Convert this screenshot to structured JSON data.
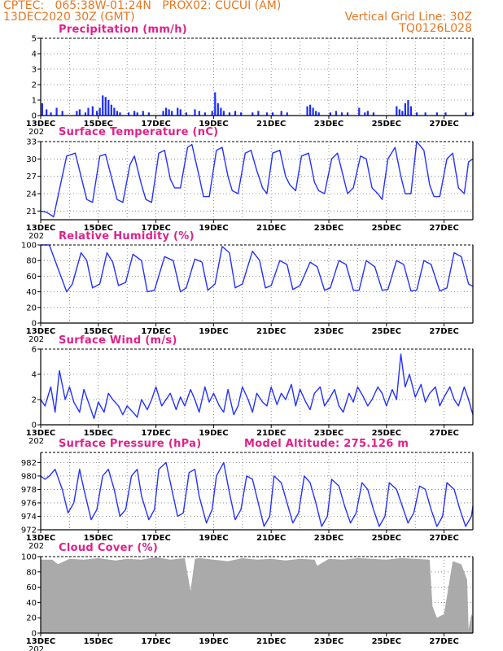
{
  "header": {
    "line1_left": "CPTEC:   065:38W-01:24N   PROX02: CUCUI (AM)",
    "line2_left": "13DEC2020 30Z (GMT)",
    "line2_right": "Vertical Grid Line: 30Z",
    "line3_right": "TQ0126L028"
  },
  "colors": {
    "header": "#e87722",
    "title": "#e0208a",
    "line": "#2432ff",
    "bar": "#1a2bff",
    "cloud": "#aaaaaa"
  },
  "x_labels": [
    "13DEC",
    "15DEC",
    "17DEC",
    "19DEC",
    "21DEC",
    "23DEC",
    "25DEC",
    "27DEC"
  ],
  "year_fragment": "202",
  "chart_data": [
    {
      "id": "precip",
      "type": "bar",
      "title": "Precipitation (mm/h)",
      "ylim": [
        0,
        5
      ],
      "yticks": [
        "0",
        "1",
        "2",
        "3",
        "4",
        "5"
      ],
      "x_range_days": [
        13,
        28
      ],
      "x_days": [
        13.05,
        13.2,
        13.35,
        13.55,
        13.75,
        14.25,
        14.35,
        14.55,
        14.65,
        14.8,
        14.95,
        15.05,
        15.15,
        15.25,
        15.35,
        15.45,
        15.55,
        15.65,
        15.75,
        16.05,
        16.25,
        16.35,
        16.55,
        16.75,
        17.25,
        17.35,
        17.45,
        17.55,
        17.75,
        17.85,
        18.05,
        18.35,
        18.5,
        18.7,
        18.95,
        19.05,
        19.15,
        19.25,
        19.35,
        19.55,
        19.75,
        19.95,
        20.35,
        20.55,
        20.85,
        21.05,
        21.35,
        21.55,
        22.25,
        22.35,
        22.45,
        22.55,
        22.65,
        23.05,
        23.25,
        23.45,
        23.65,
        24.05,
        24.25,
        24.35,
        24.55,
        25.35,
        25.45,
        25.55,
        25.65,
        25.75,
        25.85,
        26.05,
        26.35,
        26.75,
        27.05,
        27.75,
        28.0
      ],
      "values": [
        0.8,
        0.4,
        0.2,
        0.5,
        0.3,
        0.3,
        0.4,
        0.2,
        0.5,
        0.6,
        0.3,
        0.5,
        1.3,
        1.2,
        1.0,
        0.7,
        0.5,
        0.3,
        0.2,
        0.2,
        0.3,
        0.2,
        0.3,
        0.2,
        0.3,
        0.5,
        0.4,
        0.3,
        0.5,
        0.4,
        0.2,
        0.4,
        0.3,
        0.2,
        0.3,
        1.5,
        0.8,
        0.5,
        0.3,
        0.2,
        0.3,
        0.2,
        0.2,
        0.3,
        0.2,
        0.2,
        0.3,
        0.2,
        0.6,
        0.7,
        0.5,
        0.3,
        0.2,
        0.2,
        0.3,
        0.2,
        0.2,
        0.5,
        0.2,
        0.3,
        0.2,
        0.6,
        0.4,
        0.3,
        0.8,
        1.0,
        0.6,
        0.2,
        0.2,
        0.2,
        0.2,
        0.2,
        0.2
      ]
    },
    {
      "id": "temp",
      "type": "line",
      "title": "Surface Temperature (nC)",
      "ylim": [
        19.5,
        33
      ],
      "yticks": [
        "21",
        "24",
        "27",
        "30",
        "33"
      ],
      "x_range_days": [
        13,
        28
      ],
      "x_days": [
        13.0,
        13.2,
        13.45,
        13.75,
        13.9,
        14.2,
        14.45,
        14.6,
        14.8,
        15.05,
        15.25,
        15.5,
        15.65,
        15.85,
        16.1,
        16.25,
        16.5,
        16.65,
        16.85,
        17.1,
        17.3,
        17.5,
        17.65,
        17.85,
        18.1,
        18.25,
        18.5,
        18.65,
        18.85,
        19.1,
        19.3,
        19.5,
        19.65,
        19.85,
        20.1,
        20.3,
        20.5,
        20.7,
        20.85,
        21.05,
        21.3,
        21.5,
        21.65,
        21.85,
        22.05,
        22.3,
        22.5,
        22.65,
        22.85,
        23.1,
        23.3,
        23.5,
        23.65,
        23.85,
        24.1,
        24.3,
        24.5,
        24.7,
        24.85,
        25.05,
        25.3,
        25.5,
        25.65,
        25.85,
        26.05,
        26.3,
        26.5,
        26.65,
        26.85,
        27.1,
        27.3,
        27.5,
        27.7,
        27.85,
        28.0
      ],
      "values": [
        21.0,
        20.8,
        20.0,
        27.0,
        30.5,
        31.0,
        26.0,
        23.0,
        22.5,
        30.5,
        30.8,
        26.0,
        23.0,
        22.5,
        29.0,
        30.5,
        25.5,
        23.0,
        22.5,
        31.0,
        31.5,
        26.5,
        25.0,
        25.0,
        32.0,
        32.5,
        27.0,
        23.5,
        23.5,
        31.5,
        32.0,
        27.0,
        24.5,
        24.0,
        31.0,
        31.5,
        28.0,
        25.0,
        24.0,
        31.0,
        31.5,
        27.0,
        25.5,
        24.5,
        30.5,
        31.0,
        26.0,
        24.5,
        24.0,
        30.0,
        31.0,
        27.0,
        24.0,
        25.0,
        30.5,
        30.0,
        25.0,
        24.0,
        23.0,
        30.0,
        32.0,
        27.0,
        24.0,
        24.0,
        33.0,
        31.5,
        25.5,
        23.5,
        23.5,
        30.0,
        31.0,
        25.0,
        24.0,
        29.5,
        30.0
      ]
    },
    {
      "id": "humidity",
      "type": "line",
      "title": "Relative Humidity (%)",
      "ylim": [
        0,
        100
      ],
      "yticks": [
        "0",
        "20",
        "40",
        "60",
        "80",
        "100"
      ],
      "x_range_days": [
        13,
        28
      ],
      "x_days": [
        13.0,
        13.3,
        13.6,
        13.9,
        14.1,
        14.4,
        14.6,
        14.8,
        15.05,
        15.3,
        15.5,
        15.7,
        15.95,
        16.2,
        16.5,
        16.7,
        16.95,
        17.3,
        17.6,
        17.85,
        18.05,
        18.35,
        18.6,
        18.8,
        19.05,
        19.3,
        19.55,
        19.75,
        20.0,
        20.35,
        20.6,
        20.8,
        21.0,
        21.3,
        21.55,
        21.75,
        22.0,
        22.35,
        22.6,
        22.85,
        23.05,
        23.35,
        23.6,
        23.85,
        24.05,
        24.3,
        24.6,
        24.85,
        25.05,
        25.35,
        25.6,
        25.85,
        26.05,
        26.3,
        26.55,
        26.85,
        27.1,
        27.35,
        27.6,
        27.85,
        28.0
      ],
      "values": [
        100,
        100,
        70,
        40,
        50,
        90,
        80,
        45,
        50,
        90,
        78,
        48,
        52,
        88,
        80,
        40,
        42,
        85,
        80,
        40,
        45,
        82,
        78,
        42,
        50,
        98,
        90,
        45,
        50,
        92,
        80,
        45,
        48,
        80,
        75,
        43,
        48,
        78,
        72,
        42,
        45,
        80,
        75,
        42,
        42,
        80,
        72,
        42,
        43,
        80,
        75,
        41,
        42,
        80,
        75,
        41,
        45,
        90,
        85,
        50,
        47
      ]
    },
    {
      "id": "wind",
      "type": "line",
      "title": "Surface Wind (m/s)",
      "ylim": [
        0,
        6
      ],
      "yticks": [
        "0",
        "2",
        "4",
        "6"
      ],
      "x_range_days": [
        13,
        28
      ],
      "x_days": [
        13.0,
        13.15,
        13.35,
        13.5,
        13.65,
        13.85,
        14.0,
        14.15,
        14.35,
        14.5,
        14.7,
        14.85,
        15.0,
        15.2,
        15.35,
        15.5,
        15.7,
        15.85,
        16.0,
        16.2,
        16.35,
        16.5,
        16.7,
        16.85,
        17.0,
        17.2,
        17.35,
        17.5,
        17.7,
        17.85,
        18.0,
        18.2,
        18.35,
        18.5,
        18.7,
        18.85,
        19.0,
        19.2,
        19.35,
        19.5,
        19.7,
        19.85,
        20.0,
        20.2,
        20.35,
        20.5,
        20.7,
        20.85,
        21.0,
        21.2,
        21.35,
        21.5,
        21.7,
        21.85,
        22.0,
        22.2,
        22.35,
        22.5,
        22.7,
        22.85,
        23.0,
        23.2,
        23.35,
        23.5,
        23.7,
        23.85,
        24.0,
        24.2,
        24.35,
        24.5,
        24.7,
        24.85,
        25.0,
        25.2,
        25.35,
        25.5,
        25.65,
        25.8,
        26.0,
        26.2,
        26.35,
        26.5,
        26.7,
        26.85,
        27.0,
        27.2,
        27.35,
        27.5,
        27.7,
        27.85,
        28.0
      ],
      "values": [
        2.0,
        1.5,
        3.0,
        1.0,
        4.3,
        2.0,
        3.0,
        1.8,
        1.0,
        2.8,
        1.5,
        0.5,
        1.8,
        1.0,
        2.5,
        2.0,
        1.5,
        0.8,
        1.5,
        1.0,
        0.6,
        2.0,
        1.2,
        2.0,
        3.0,
        1.5,
        2.0,
        2.5,
        1.2,
        2.2,
        1.5,
        2.8,
        2.0,
        1.0,
        3.0,
        1.8,
        2.5,
        1.5,
        1.0,
        2.8,
        0.8,
        1.5,
        3.0,
        2.0,
        1.0,
        2.5,
        1.8,
        1.5,
        3.0,
        1.6,
        2.5,
        2.0,
        3.2,
        1.5,
        2.8,
        1.8,
        1.2,
        2.5,
        3.0,
        1.5,
        2.0,
        2.8,
        1.5,
        1.0,
        2.5,
        1.8,
        3.0,
        2.2,
        1.5,
        2.0,
        3.0,
        2.5,
        1.5,
        2.8,
        2.0,
        5.6,
        3.0,
        4.0,
        2.2,
        3.2,
        1.8,
        2.5,
        3.0,
        1.5,
        2.2,
        3.0,
        2.0,
        1.5,
        3.0,
        2.0,
        0.8
      ]
    },
    {
      "id": "pressure",
      "type": "line",
      "title": "Surface Pressure (hPa)",
      "annotation": "Model Altitude: 275.126 m",
      "ylim": [
        972,
        983.5
      ],
      "yticks": [
        "972",
        "974",
        "976",
        "978",
        "980",
        "982"
      ],
      "x_range_days": [
        13,
        28
      ],
      "x_days": [
        13.0,
        13.15,
        13.3,
        13.5,
        13.75,
        13.95,
        14.15,
        14.35,
        14.5,
        14.75,
        14.95,
        15.15,
        15.35,
        15.55,
        15.75,
        15.95,
        16.15,
        16.35,
        16.5,
        16.75,
        16.95,
        17.1,
        17.35,
        17.55,
        17.75,
        17.95,
        18.15,
        18.35,
        18.5,
        18.75,
        18.95,
        19.1,
        19.35,
        19.55,
        19.75,
        19.95,
        20.15,
        20.35,
        20.55,
        20.75,
        20.95,
        21.1,
        21.35,
        21.55,
        21.75,
        21.95,
        22.15,
        22.35,
        22.55,
        22.75,
        22.95,
        23.1,
        23.35,
        23.55,
        23.75,
        23.95,
        24.15,
        24.35,
        24.55,
        24.75,
        24.95,
        25.1,
        25.35,
        25.55,
        25.75,
        25.95,
        26.15,
        26.35,
        26.55,
        26.75,
        26.95,
        27.1,
        27.35,
        27.55,
        27.75,
        27.95,
        28.0
      ],
      "values": [
        980,
        979.5,
        980,
        981,
        978,
        974.5,
        976,
        981,
        978,
        973.5,
        975,
        980,
        981,
        978,
        974,
        975,
        980,
        981,
        977,
        973.5,
        975,
        981,
        982,
        978,
        974,
        974.5,
        980.5,
        981,
        977,
        973,
        975,
        980,
        982,
        977.5,
        973.5,
        975,
        980,
        979.5,
        976,
        972.5,
        974,
        980,
        979,
        976,
        973,
        974.5,
        980,
        979,
        976,
        972.5,
        974,
        979.5,
        978.5,
        975.5,
        973,
        974.5,
        979,
        978,
        975,
        972.5,
        974,
        979,
        978,
        975.5,
        973,
        974.5,
        978.5,
        978,
        975,
        972.5,
        974,
        979,
        978,
        975,
        972.5,
        974,
        975.5
      ]
    },
    {
      "id": "cloud",
      "type": "area",
      "title": "Cloud Cover (%)",
      "ylim": [
        0,
        100
      ],
      "yticks": [
        "0",
        "20",
        "40",
        "60",
        "80",
        "100"
      ],
      "x_range_days": [
        13,
        28
      ],
      "x_days": [
        13.0,
        13.4,
        13.6,
        14.0,
        14.5,
        15.0,
        15.6,
        16.0,
        16.5,
        17.0,
        17.5,
        18.0,
        18.2,
        18.35,
        18.5,
        19.0,
        19.5,
        20.0,
        20.5,
        21.0,
        21.5,
        22.0,
        22.5,
        22.6,
        23.0,
        23.5,
        24.0,
        24.5,
        25.0,
        25.5,
        26.0,
        26.5,
        26.6,
        26.75,
        27.0,
        27.3,
        27.6,
        27.8,
        27.85,
        27.95,
        28.0
      ],
      "values": [
        96,
        96,
        90,
        97,
        96,
        98,
        95,
        97,
        96,
        99,
        96,
        98,
        55,
        97,
        98,
        96,
        94,
        98,
        96,
        97,
        95,
        97,
        96,
        88,
        97,
        96,
        98,
        97,
        96,
        98,
        97,
        96,
        35,
        20,
        25,
        94,
        90,
        70,
        5,
        25,
        20
      ]
    }
  ]
}
